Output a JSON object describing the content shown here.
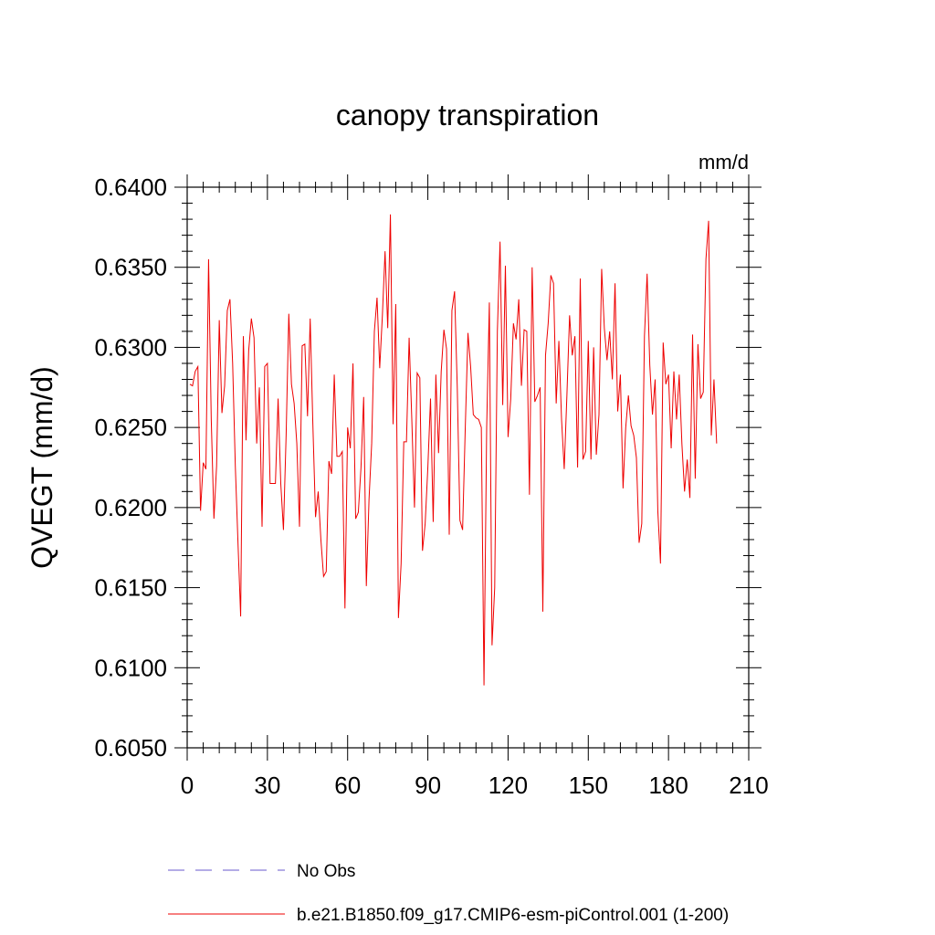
{
  "chart_data": {
    "type": "line",
    "title": "canopy transpiration",
    "units": "mm/d",
    "ylabel": "QVEGT  (mm/d)",
    "xlabel": "",
    "xlim": [
      0,
      210
    ],
    "ylim": [
      0.605,
      0.64
    ],
    "xticks": [
      0,
      30,
      60,
      90,
      120,
      150,
      180,
      210
    ],
    "yticks": [
      0.605,
      0.61,
      0.615,
      0.62,
      0.625,
      0.63,
      0.635,
      0.64
    ],
    "ytick_labels": [
      "0.6050",
      "0.6100",
      "0.6150",
      "0.6200",
      "0.6250",
      "0.6300",
      "0.6350",
      "0.6400"
    ],
    "grid": false,
    "legend_position": "bottom",
    "legend": [
      {
        "label": "No Obs",
        "style": "dashed",
        "color": "#6a5acd"
      },
      {
        "label": "b.e21.B1850.f09_g17.CMIP6-esm-piControl.001 (1-200)",
        "style": "solid",
        "color": "#ee0000"
      }
    ],
    "series": [
      {
        "name": "b.e21.B1850.f09_g17.CMIP6-esm-piControl.001 (1-200)",
        "color": "#ee0000",
        "x_start": 1,
        "values": [
          0.6277,
          0.6276,
          0.6285,
          0.6288,
          0.6198,
          0.6228,
          0.6224,
          0.6355,
          0.6255,
          0.6193,
          0.6226,
          0.6317,
          0.6259,
          0.6276,
          0.6323,
          0.633,
          0.629,
          0.6226,
          0.6178,
          0.6132,
          0.6307,
          0.6242,
          0.6298,
          0.6318,
          0.6306,
          0.624,
          0.6275,
          0.6188,
          0.6288,
          0.629,
          0.6215,
          0.6215,
          0.6215,
          0.6268,
          0.6215,
          0.6186,
          0.6245,
          0.6321,
          0.6277,
          0.6265,
          0.624,
          0.6188,
          0.6301,
          0.6302,
          0.6257,
          0.6318,
          0.6252,
          0.6194,
          0.621,
          0.618,
          0.6157,
          0.616,
          0.6229,
          0.6221,
          0.6283,
          0.6232,
          0.6232,
          0.6235,
          0.6137,
          0.625,
          0.6237,
          0.629,
          0.6193,
          0.6197,
          0.6225,
          0.6269,
          0.6151,
          0.6205,
          0.624,
          0.631,
          0.6331,
          0.6287,
          0.632,
          0.636,
          0.6312,
          0.6383,
          0.6252,
          0.6327,
          0.6131,
          0.6165,
          0.6241,
          0.6241,
          0.6306,
          0.6255,
          0.62,
          0.6284,
          0.6281,
          0.6173,
          0.619,
          0.6225,
          0.6268,
          0.6191,
          0.6283,
          0.6234,
          0.6285,
          0.6311,
          0.6299,
          0.6183,
          0.6323,
          0.6335,
          0.6275,
          0.6192,
          0.6186,
          0.625,
          0.6309,
          0.6288,
          0.6258,
          0.6256,
          0.6255,
          0.625,
          0.6089,
          0.625,
          0.6328,
          0.6114,
          0.615,
          0.631,
          0.6366,
          0.6264,
          0.6351,
          0.6244,
          0.6268,
          0.6315,
          0.6305,
          0.633,
          0.6276,
          0.6311,
          0.631,
          0.6208,
          0.635,
          0.6266,
          0.627,
          0.6275,
          0.6135,
          0.6295,
          0.6315,
          0.6345,
          0.634,
          0.6265,
          0.6304,
          0.6255,
          0.6224,
          0.627,
          0.632,
          0.6295,
          0.6307,
          0.6225,
          0.6343,
          0.623,
          0.6235,
          0.6304,
          0.623,
          0.63,
          0.6233,
          0.6258,
          0.6349,
          0.6312,
          0.6292,
          0.631,
          0.628,
          0.634,
          0.626,
          0.6283,
          0.6212,
          0.625,
          0.627,
          0.6251,
          0.6245,
          0.6231,
          0.6178,
          0.619,
          0.6307,
          0.6346,
          0.6289,
          0.6258,
          0.628,
          0.6198,
          0.6165,
          0.6303,
          0.6277,
          0.6283,
          0.6237,
          0.6285,
          0.6255,
          0.6283,
          0.624,
          0.621,
          0.623,
          0.6206,
          0.6308,
          0.6218,
          0.6302,
          0.6268,
          0.6272,
          0.6355,
          0.6379,
          0.6245,
          0.628,
          0.624
        ]
      }
    ]
  }
}
